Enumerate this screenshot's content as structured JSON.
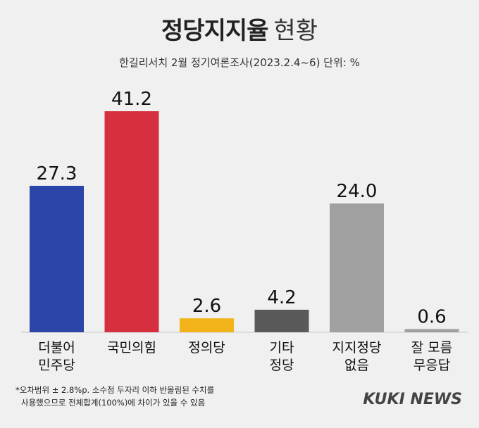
{
  "title_bold": "정당지지율",
  "title_light": "현황",
  "subtitle": "한길리서치 2월 정기여론조사(2023.2.4~6) 단위: %",
  "footnote_line1": "*오차범위 ± 2.8%p. 소수점 두자리 이하 반올림된 수치를",
  "footnote_line2": "사용했으므로 전체합계(100%)에 차이가 있을 수 있음",
  "brand": "KUKI NEWS",
  "chart_data": {
    "type": "bar",
    "title": "정당지지율 현황",
    "categories": [
      [
        "더불어",
        "민주당"
      ],
      [
        "국민의힘"
      ],
      [
        "정의당"
      ],
      [
        "기타",
        "정당"
      ],
      [
        "지지정당",
        "없음"
      ],
      [
        "잘 모름",
        "무응답"
      ]
    ],
    "values": [
      27.3,
      41.2,
      2.6,
      4.2,
      24.0,
      0.6
    ],
    "value_labels": [
      "27.3",
      "41.2",
      "2.6",
      "4.2",
      "24.0",
      "0.6"
    ],
    "colors": [
      "#2b45a8",
      "#d62f3f",
      "#f2b31b",
      "#595959",
      "#a0a0a0",
      "#a0a0a0"
    ],
    "unit": "%",
    "ylim": [
      0,
      41.2
    ],
    "grid": false,
    "legend": "none"
  }
}
